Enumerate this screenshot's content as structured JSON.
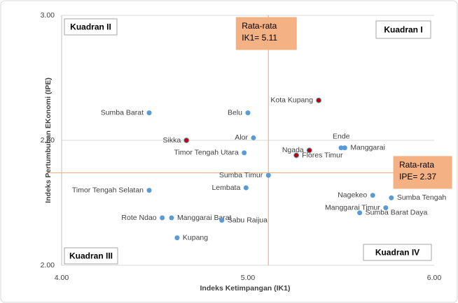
{
  "chart_data": {
    "type": "scatter",
    "xlabel": "Indeks Ketimpangan (IK1)",
    "ylabel": "Indeks Pertumbuhan EKonomi (IPE)",
    "xlim": [
      4,
      6
    ],
    "ylim": [
      2,
      3
    ],
    "xticks": [
      {
        "value": 4,
        "label": "4.00"
      },
      {
        "value": 5,
        "label": "5.00"
      },
      {
        "value": 6,
        "label": "6.00"
      }
    ],
    "yticks": [
      {
        "value": 2,
        "label": "2.00"
      },
      {
        "value": 2.5,
        "label": "2.50"
      },
      {
        "value": 3,
        "label": "3.00"
      }
    ],
    "grid": true,
    "labels": [
      "Sumba Barat",
      "Belu",
      "Kota Kupang",
      "Sikka",
      "Alor",
      "Timor Tengah Utara",
      "Ende",
      "Manggarai",
      "Ngada",
      "Flores Timur",
      "Sumba Timur",
      "Timor Tengah Selatan",
      "Lembata",
      "Nagekeo",
      "Sumba Tengah",
      "Manggarai Timur",
      "Sumba Barat Daya",
      "Rote Ndao",
      "Manggarai Barat",
      "Sabu Raijua",
      "Kupang"
    ],
    "x": [
      4.47,
      5.0,
      5.38,
      4.67,
      5.03,
      4.98,
      5.5,
      5.52,
      5.33,
      5.26,
      5.11,
      4.47,
      4.99,
      5.67,
      5.77,
      5.74,
      5.6,
      4.54,
      4.59,
      4.86,
      4.62
    ],
    "values": [
      2.61,
      2.61,
      2.66,
      2.5,
      2.51,
      2.45,
      2.47,
      2.47,
      2.46,
      2.44,
      2.36,
      2.3,
      2.31,
      2.28,
      2.27,
      2.23,
      2.21,
      2.19,
      2.19,
      2.18,
      2.11
    ],
    "colors": [
      "#5b9bd5",
      "#5b9bd5",
      "#c00000",
      "#c00000",
      "#5b9bd5",
      "#5b9bd5",
      "#5b9bd5",
      "#5b9bd5",
      "#c00000",
      "#c00000",
      "#5b9bd5",
      "#5b9bd5",
      "#5b9bd5",
      "#5b9bd5",
      "#5b9bd5",
      "#5b9bd5",
      "#5b9bd5",
      "#5b9bd5",
      "#5b9bd5",
      "#5b9bd5",
      "#5b9bd5"
    ],
    "mean_x": {
      "value": 5.11,
      "label": [
        "Rata-rata",
        "IK1= 5.11"
      ]
    },
    "mean_y": {
      "value": 2.37,
      "label": [
        "Rata-rata",
        "IPE= 2.37"
      ]
    },
    "quadrants": [
      "Kuadran I",
      "Kuadran II",
      "Kuadran III",
      "Kuadran IV"
    ]
  }
}
